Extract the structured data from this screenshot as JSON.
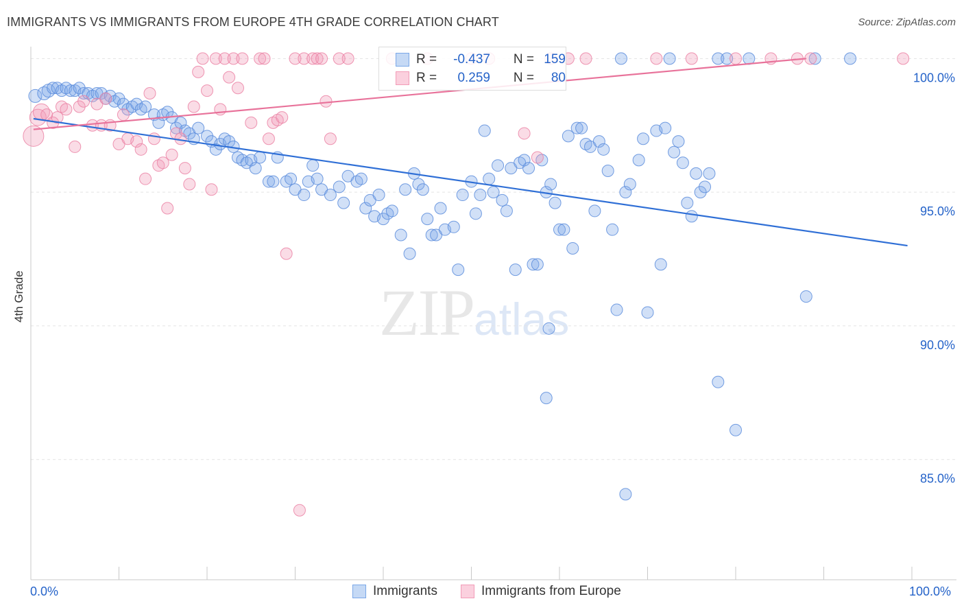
{
  "header": {
    "title": "IMMIGRANTS VS IMMIGRANTS FROM EUROPE 4TH GRADE CORRELATION CHART",
    "source": "Source: ZipAtlas.com"
  },
  "watermark": {
    "zip": "ZIP",
    "atlas": "atlas"
  },
  "legend": {
    "r_label": "R =",
    "n_label": "N =",
    "series": [
      {
        "name": "Immigrants",
        "r": "-0.437",
        "n": "159",
        "color": "#7aa7e8"
      },
      {
        "name": "Immigrants from Europe",
        "r": "0.259",
        "n": "80",
        "color": "#f29bb7"
      }
    ]
  },
  "chart_data": {
    "type": "scatter",
    "title": "IMMIGRANTS VS IMMIGRANTS FROM EUROPE 4TH GRADE CORRELATION CHART",
    "xlabel": "",
    "ylabel": "4th Grade",
    "xlim": [
      0,
      100
    ],
    "ylim": [
      80.5,
      100.6
    ],
    "x_tick_labels": [
      "0.0%",
      "100.0%"
    ],
    "y_ticks": [
      100,
      95,
      90,
      85
    ],
    "y_tick_labels": [
      "100.0%",
      "95.0%",
      "90.0%",
      "85.0%"
    ],
    "grid": true,
    "legend_position": "top-center",
    "series": [
      {
        "name": "Immigrants",
        "color": "#7aa7e8",
        "trend_color": "#2f6fd6",
        "trend": [
          [
            0.3,
            97.75
          ],
          [
            99.5,
            93.0
          ]
        ],
        "points": [
          [
            0.5,
            98.6
          ],
          [
            1.5,
            98.7
          ],
          [
            2,
            98.8
          ],
          [
            2.5,
            98.9
          ],
          [
            3,
            98.9
          ],
          [
            3.5,
            98.8
          ],
          [
            4,
            98.9
          ],
          [
            4.5,
            98.8
          ],
          [
            5,
            98.8
          ],
          [
            5.5,
            98.9
          ],
          [
            6,
            98.7
          ],
          [
            6.5,
            98.7
          ],
          [
            7,
            98.6
          ],
          [
            7.5,
            98.7
          ],
          [
            8,
            98.7
          ],
          [
            8.5,
            98.5
          ],
          [
            9,
            98.6
          ],
          [
            9.5,
            98.4
          ],
          [
            10,
            98.5
          ],
          [
            10.5,
            98.3
          ],
          [
            11,
            98.1
          ],
          [
            11.5,
            98.2
          ],
          [
            12,
            98.3
          ],
          [
            12.5,
            98.1
          ],
          [
            13,
            98.2
          ],
          [
            14,
            97.9
          ],
          [
            14.5,
            97.6
          ],
          [
            15,
            97.9
          ],
          [
            15.5,
            98.0
          ],
          [
            16,
            97.8
          ],
          [
            16.5,
            97.4
          ],
          [
            17,
            97.6
          ],
          [
            17.5,
            97.3
          ],
          [
            18,
            97.2
          ],
          [
            18.5,
            97.0
          ],
          [
            19,
            97.4
          ],
          [
            20,
            97.1
          ],
          [
            20.5,
            96.9
          ],
          [
            21,
            96.6
          ],
          [
            21.5,
            96.8
          ],
          [
            22,
            97.0
          ],
          [
            22.5,
            96.9
          ],
          [
            23,
            96.7
          ],
          [
            23.5,
            96.3
          ],
          [
            24,
            96.2
          ],
          [
            24.5,
            96.1
          ],
          [
            25,
            96.2
          ],
          [
            25.5,
            95.9
          ],
          [
            26,
            96.3
          ],
          [
            27,
            95.4
          ],
          [
            27.5,
            95.4
          ],
          [
            28,
            96.3
          ],
          [
            29,
            95.4
          ],
          [
            29.5,
            95.5
          ],
          [
            30,
            95.1
          ],
          [
            31,
            94.9
          ],
          [
            31.5,
            95.4
          ],
          [
            32,
            96.0
          ],
          [
            32.5,
            95.5
          ],
          [
            33,
            95.1
          ],
          [
            34,
            94.9
          ],
          [
            35,
            95.2
          ],
          [
            35.5,
            94.6
          ],
          [
            36,
            95.6
          ],
          [
            37,
            95.4
          ],
          [
            37.5,
            95.5
          ],
          [
            38,
            94.4
          ],
          [
            38.5,
            94.7
          ],
          [
            39,
            94.1
          ],
          [
            39.5,
            94.9
          ],
          [
            40,
            94.0
          ],
          [
            40.5,
            94.2
          ],
          [
            41,
            94.3
          ],
          [
            42,
            93.4
          ],
          [
            42.5,
            95.1
          ],
          [
            43,
            92.7
          ],
          [
            43.5,
            95.7
          ],
          [
            44,
            95.3
          ],
          [
            44.5,
            95.1
          ],
          [
            45,
            94.0
          ],
          [
            45.5,
            93.4
          ],
          [
            46,
            93.4
          ],
          [
            46.5,
            94.4
          ],
          [
            47,
            93.6
          ],
          [
            48,
            93.7
          ],
          [
            48.5,
            92.1
          ],
          [
            49,
            94.9
          ],
          [
            50,
            95.4
          ],
          [
            50.5,
            94.2
          ],
          [
            51,
            94.9
          ],
          [
            51.5,
            97.3
          ],
          [
            52,
            95.5
          ],
          [
            52.5,
            95.0
          ],
          [
            53,
            96.0
          ],
          [
            53.5,
            94.7
          ],
          [
            54,
            94.3
          ],
          [
            54.5,
            95.9
          ],
          [
            55,
            92.1
          ],
          [
            55.5,
            96.1
          ],
          [
            56,
            96.2
          ],
          [
            56.5,
            95.9
          ],
          [
            57,
            92.3
          ],
          [
            57.5,
            92.3
          ],
          [
            58,
            96.2
          ],
          [
            58.5,
            95.0
          ],
          [
            59,
            95.3
          ],
          [
            59.5,
            94.6
          ],
          [
            60,
            93.6
          ],
          [
            60.5,
            93.6
          ],
          [
            61,
            97.1
          ],
          [
            61.5,
            92.9
          ],
          [
            62,
            97.4
          ],
          [
            62.5,
            97.4
          ],
          [
            63,
            96.8
          ],
          [
            63.5,
            96.7
          ],
          [
            64,
            94.3
          ],
          [
            64.5,
            96.9
          ],
          [
            65,
            96.6
          ],
          [
            65.5,
            95.8
          ],
          [
            66,
            93.6
          ],
          [
            66.5,
            90.6
          ],
          [
            67,
            100
          ],
          [
            67.5,
            95.0
          ],
          [
            68,
            95.3
          ],
          [
            69,
            96.2
          ],
          [
            69.5,
            97.0
          ],
          [
            70,
            90.5
          ],
          [
            71,
            97.3
          ],
          [
            71.5,
            92.3
          ],
          [
            72,
            97.4
          ],
          [
            72.5,
            100
          ],
          [
            73,
            96.5
          ],
          [
            73.5,
            96.9
          ],
          [
            74,
            96.1
          ],
          [
            74.5,
            94.6
          ],
          [
            75,
            94.1
          ],
          [
            75.5,
            95.7
          ],
          [
            76,
            95.0
          ],
          [
            76.5,
            95.2
          ],
          [
            77,
            95.7
          ],
          [
            78,
            100
          ],
          [
            79,
            100
          ],
          [
            58.8,
            89.9
          ],
          [
            58.5,
            87.3
          ],
          [
            78,
            87.9
          ],
          [
            80,
            86.1
          ],
          [
            67.5,
            83.7
          ],
          [
            81.5,
            100
          ],
          [
            88,
            91.1
          ],
          [
            89,
            100
          ],
          [
            93,
            100
          ]
        ]
      },
      {
        "name": "Immigrants from Europe",
        "color": "#f29bb7",
        "trend_color": "#e8729a",
        "trend": [
          [
            0.3,
            97.35
          ],
          [
            88,
            100.0
          ]
        ],
        "points": [
          [
            0.3,
            97.1
          ],
          [
            0.8,
            97.8
          ],
          [
            1.2,
            98.0
          ],
          [
            1.8,
            97.9
          ],
          [
            2.5,
            97.6
          ],
          [
            3,
            97.8
          ],
          [
            3.5,
            98.2
          ],
          [
            4,
            98.1
          ],
          [
            5,
            96.7
          ],
          [
            5.5,
            98.2
          ],
          [
            6,
            98.4
          ],
          [
            7,
            97.5
          ],
          [
            7.5,
            98.3
          ],
          [
            8,
            97.5
          ],
          [
            8.5,
            98.5
          ],
          [
            9,
            97.5
          ],
          [
            10,
            96.8
          ],
          [
            10.5,
            97.9
          ],
          [
            11,
            97.0
          ],
          [
            12,
            96.9
          ],
          [
            12.5,
            96.6
          ],
          [
            13,
            95.5
          ],
          [
            13.5,
            98.7
          ],
          [
            14,
            97.0
          ],
          [
            14.5,
            96.0
          ],
          [
            15,
            96.1
          ],
          [
            15.5,
            94.4
          ],
          [
            16,
            96.4
          ],
          [
            16.5,
            97.2
          ],
          [
            17,
            97.0
          ],
          [
            17.5,
            95.9
          ],
          [
            18,
            95.3
          ],
          [
            18.5,
            98.2
          ],
          [
            19,
            99.5
          ],
          [
            19.5,
            100
          ],
          [
            20,
            98.8
          ],
          [
            20.5,
            95.1
          ],
          [
            21,
            100
          ],
          [
            21.5,
            98.1
          ],
          [
            22,
            100
          ],
          [
            22.5,
            99.3
          ],
          [
            23,
            100
          ],
          [
            23.5,
            98.9
          ],
          [
            24,
            100
          ],
          [
            25,
            97.6
          ],
          [
            26,
            100
          ],
          [
            26.5,
            100
          ],
          [
            27,
            97.0
          ],
          [
            27.5,
            97.6
          ],
          [
            28,
            97.7
          ],
          [
            28.5,
            97.8
          ],
          [
            29,
            92.7
          ],
          [
            30,
            100
          ],
          [
            31,
            100
          ],
          [
            32,
            100
          ],
          [
            32.5,
            100
          ],
          [
            33,
            100
          ],
          [
            33.5,
            98.4
          ],
          [
            34,
            97.0
          ],
          [
            35,
            100
          ],
          [
            36,
            100
          ],
          [
            41,
            100
          ],
          [
            45,
            100
          ],
          [
            50,
            100
          ],
          [
            52,
            100
          ],
          [
            56,
            97.2
          ],
          [
            57.5,
            96.3
          ],
          [
            71,
            100
          ],
          [
            75,
            100
          ],
          [
            80,
            100
          ],
          [
            84,
            100
          ],
          [
            30.5,
            83.1
          ],
          [
            59,
            100
          ],
          [
            61,
            100
          ],
          [
            63,
            100
          ],
          [
            87,
            100
          ],
          [
            88.5,
            100
          ],
          [
            99,
            100
          ]
        ]
      }
    ]
  }
}
